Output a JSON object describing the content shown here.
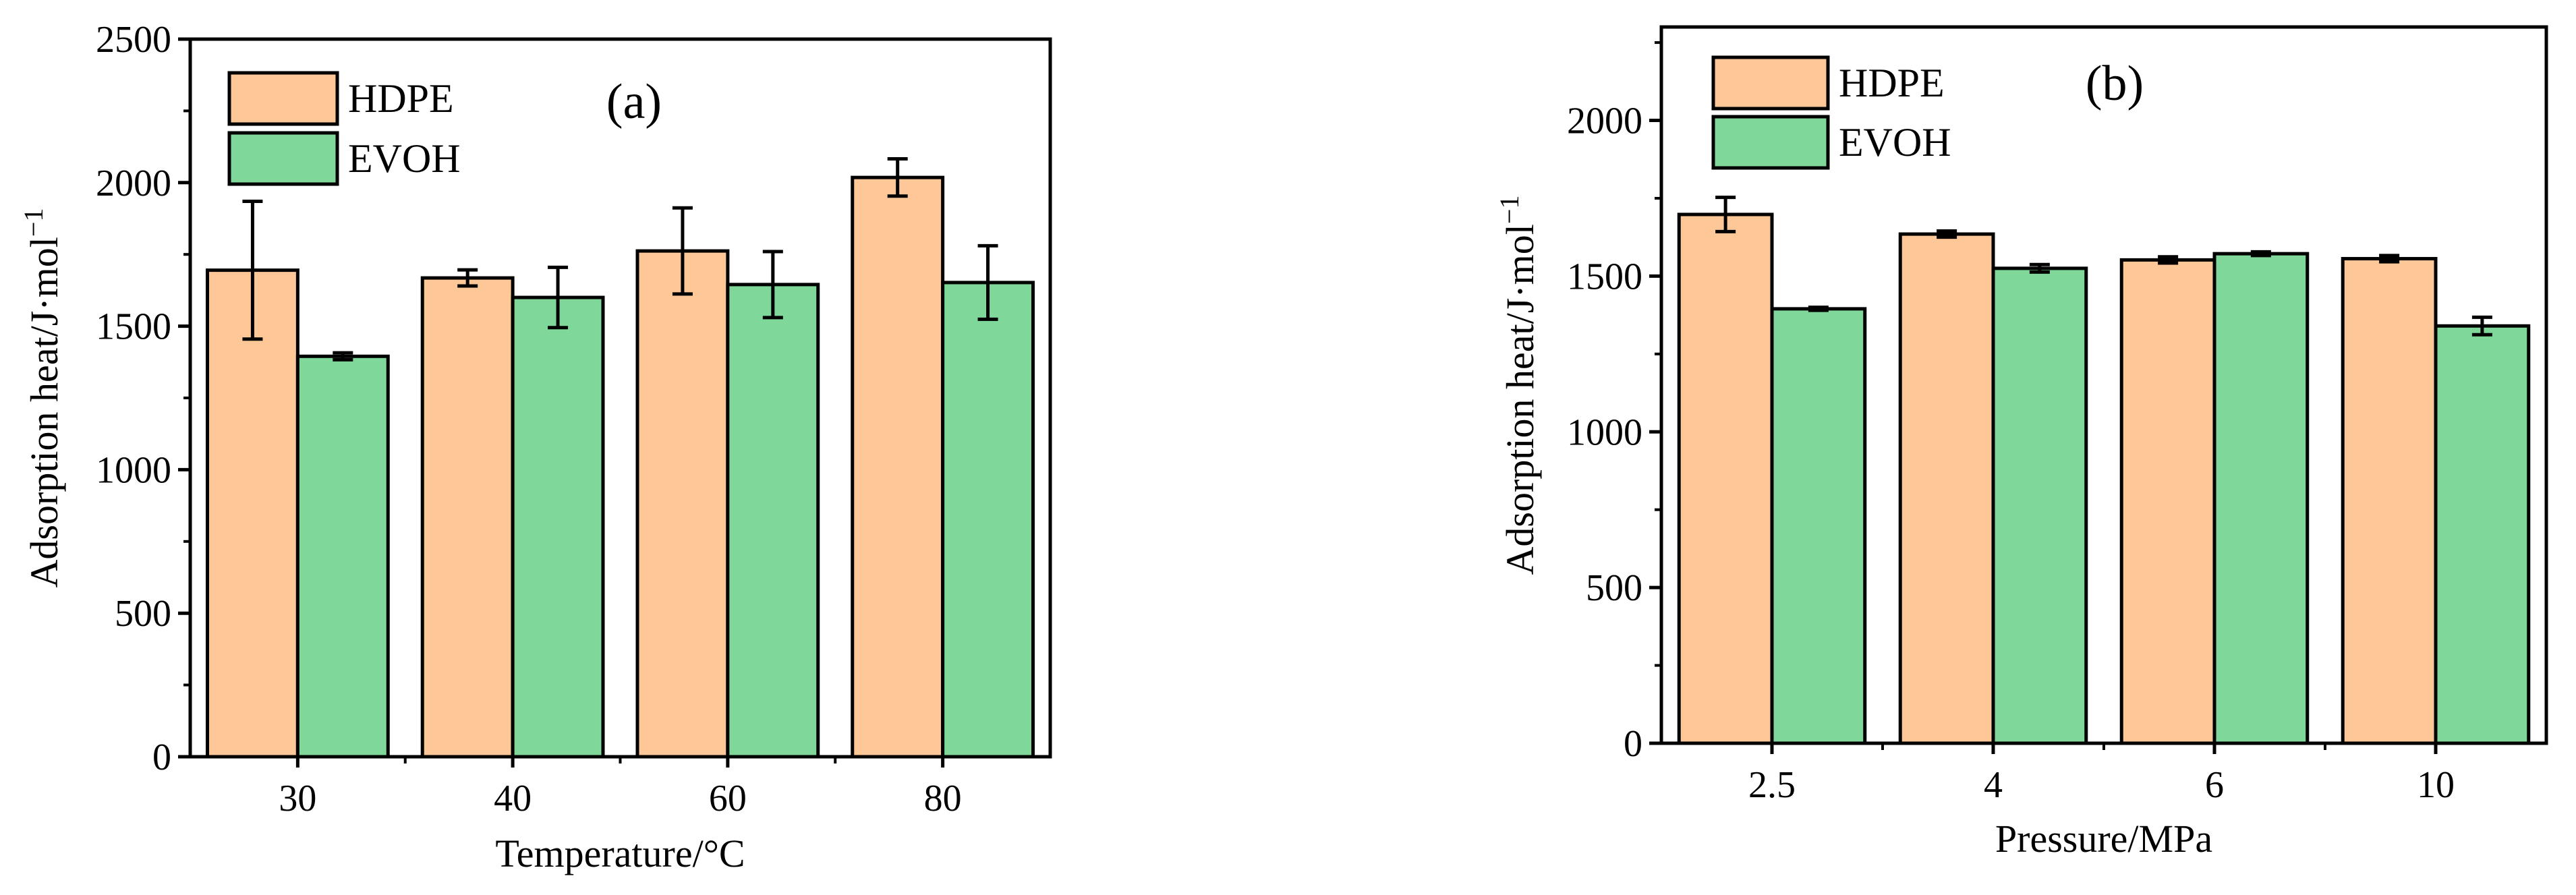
{
  "chart_data": [
    {
      "type": "bar",
      "panel_label": "(a)",
      "xlabel": "Temperature/°C",
      "ylabel": "Adsorption heat/J·mol",
      "ylabel_sup": "−1",
      "categories": [
        "30",
        "40",
        "60",
        "80"
      ],
      "ylim": [
        0,
        2500
      ],
      "yticks": [
        0,
        500,
        1000,
        1500,
        2000,
        2500
      ],
      "legend_position": "top-left",
      "series": [
        {
          "name": "HDPE",
          "color": "#FDC797",
          "values": [
            1695,
            1668,
            1762,
            2018
          ],
          "errors": [
            240,
            28,
            150,
            65
          ]
        },
        {
          "name": "EVOH",
          "color": "#7FD89A",
          "values": [
            1395,
            1600,
            1645,
            1652
          ],
          "errors": [
            12,
            105,
            115,
            128
          ]
        }
      ]
    },
    {
      "type": "bar",
      "panel_label": "(b)",
      "xlabel": "Pressure/MPa",
      "ylabel": "Adsorption heat/J·mol",
      "ylabel_sup": "−1",
      "categories": [
        "2.5",
        "4",
        "6",
        "10"
      ],
      "ylim": [
        0,
        2300
      ],
      "yticks": [
        0,
        500,
        1000,
        1500,
        2000
      ],
      "legend_position": "top-left",
      "series": [
        {
          "name": "HDPE",
          "color": "#FDC797",
          "values": [
            1698,
            1635,
            1552,
            1556
          ],
          "errors": [
            55,
            10,
            10,
            10
          ]
        },
        {
          "name": "EVOH",
          "color": "#7FD89A",
          "values": [
            1395,
            1525,
            1572,
            1340
          ],
          "errors": [
            5,
            12,
            6,
            28
          ]
        }
      ]
    }
  ]
}
